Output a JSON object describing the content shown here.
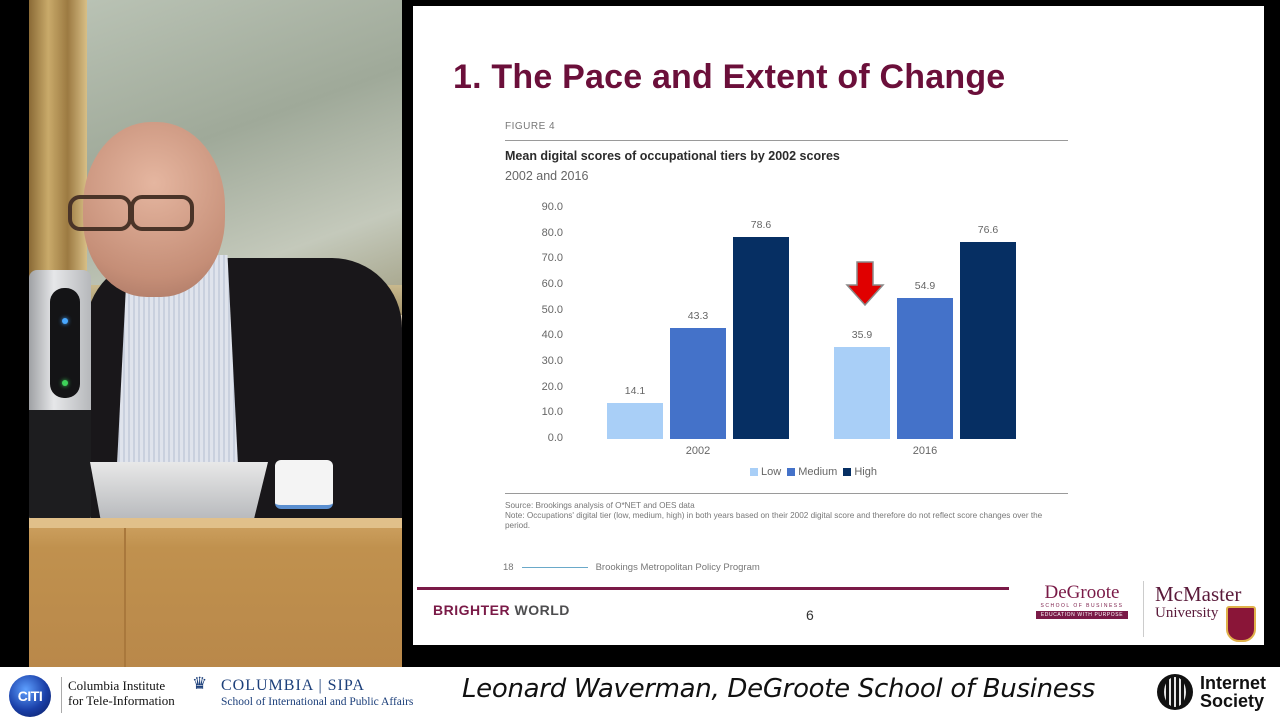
{
  "video": {
    "description": "Live video feed of speaker at podium"
  },
  "slide": {
    "title": "1. The Pace and Extent of Change",
    "figure_label": "FIGURE 4",
    "figure_title": "Mean digital scores of occupational tiers by 2002 scores",
    "figure_subtitle": "2002 and 2016",
    "source_line": "Source: Brookings analysis of O*NET and OES data",
    "note_line": "Note: Occupations' digital tier (low, medium, high) in both years based on their 2002 digital score and therefore do not reflect score changes over the period.",
    "report_page": "18",
    "report_name": "Brookings Metropolitan Policy Program",
    "footer_brand_1": "BRIGHTER",
    "footer_brand_2": "WORLD",
    "page_number": "6",
    "logo_degroote": "DeGroote",
    "logo_degroote_sub": "SCHOOL OF BUSINESS",
    "logo_degroote_tag": "EDUCATION WITH PURPOSE",
    "logo_mcmaster": "McMaster",
    "logo_mcmaster_sub": "University",
    "annotation": "red-down-arrow-icon pointing at 2016 Low bar"
  },
  "chart_data": {
    "type": "bar",
    "title": "Mean digital scores of occupational tiers by 2002 scores",
    "subtitle": "2002 and 2016",
    "categories": [
      "2002",
      "2016"
    ],
    "series": [
      {
        "name": "Low",
        "color": "#a9cff7",
        "values": [
          14.1,
          35.9
        ]
      },
      {
        "name": "Medium",
        "color": "#4472c9",
        "values": [
          43.3,
          54.9
        ]
      },
      {
        "name": "High",
        "color": "#062f63",
        "values": [
          78.6,
          76.6
        ]
      }
    ],
    "yticks": [
      "90.0",
      "80.0",
      "70.0",
      "60.0",
      "50.0",
      "40.0",
      "30.0",
      "20.0",
      "10.0",
      "0.0"
    ],
    "ylim": [
      0,
      90
    ],
    "xlabel": "",
    "ylabel": "",
    "grid": false,
    "legend_position": "bottom",
    "legend": [
      "Low",
      "Medium",
      "High"
    ],
    "value_labels": {
      "2002": [
        "14.1",
        "43.3",
        "78.6"
      ],
      "2016": [
        "35.9",
        "54.9",
        "76.6"
      ]
    }
  },
  "banner": {
    "citi_logo": "CITI",
    "citi_line1": "Columbia Institute",
    "citi_line2": "for Tele-Information",
    "sipa_line1": "COLUMBIA | SIPA",
    "sipa_line2": "School of International and Public Affairs",
    "speaker": "Leonard Waverman, DeGroote School of Business",
    "isoc_line1": "Internet",
    "isoc_line2": "Society"
  },
  "colors": {
    "title_maroon": "#6b0f3a",
    "low": "#a9cff7",
    "medium": "#4472c9",
    "high": "#062f63",
    "arrow_red": "#e00000"
  }
}
